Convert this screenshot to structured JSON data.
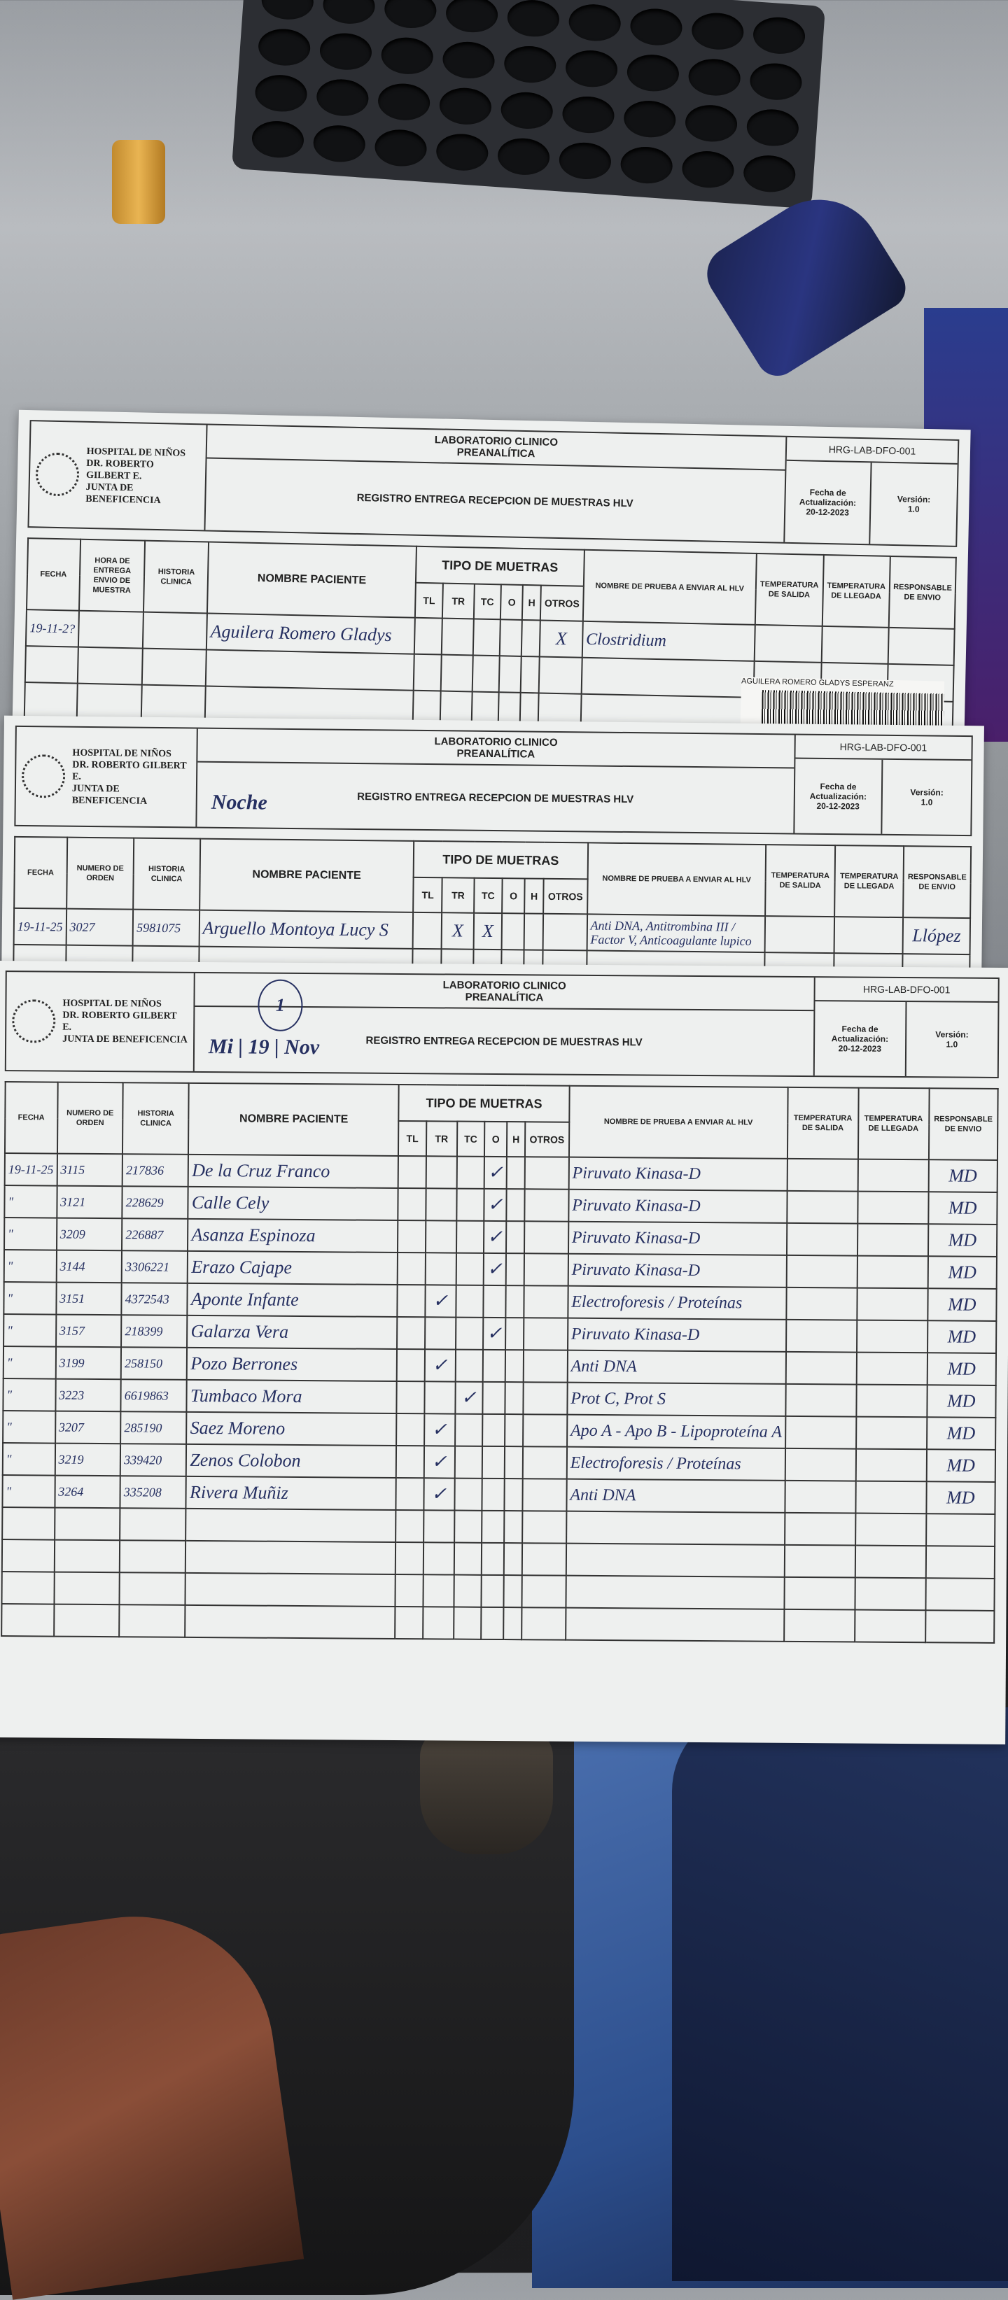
{
  "form_header": {
    "hospital_lines": [
      "HOSPITAL DE NIÑOS",
      "DR. ROBERTO GILBERT E.",
      "JUNTA DE BENEFICENCIA"
    ],
    "lab_title": "LABORATORIO CLINICO",
    "lab_subtitle": "PREANALÍTICA",
    "register_title": "REGISTRO ENTREGA RECEPCION DE MUESTRAS HLV",
    "code": "HRG-LAB-DFO-001",
    "update_label": "Fecha de Actualización:",
    "update_date": "20-12-2023",
    "version_label": "Versión:",
    "version": "1.0"
  },
  "columns_form1": [
    "FECHA",
    "HORA DE ENTREGA ENVIO DE MUESTRA",
    "HISTORIA CLINICA",
    "NOMBRE PACIENTE",
    "TIPO DE MUETRAS",
    "NOMBRE DE PRUEBA A ENVIAR AL HLV",
    "TEMPERATURA DE SALIDA",
    "TEMPERATURA DE LLEGADA",
    "RESPONSABLE DE ENVIO"
  ],
  "columns": [
    "FECHA",
    "NUMERO DE ORDEN",
    "HISTORIA CLINICA",
    "NOMBRE PACIENTE",
    "TIPO DE MUETRAS",
    "NOMBRE DE PRUEBA A ENVIAR AL HLV",
    "TEMPERATURA DE SALIDA",
    "TEMPERATURA DE LLEGADA",
    "RESPONSABLE DE ENVIO"
  ],
  "sample_types": [
    "TL",
    "TR",
    "TC",
    "O",
    "H",
    "OTROS"
  ],
  "forms": [
    {
      "note": "",
      "sticker": "AGUILERA ROMERO   GLADYS ESPERANZ",
      "rows": [
        {
          "fecha": "19-11-2?",
          "orden": "",
          "historia": "",
          "nombre": "Aguilera Romero Gladys",
          "mark": "OTROS",
          "symbol": "X",
          "prueba": "Clostridium",
          "responsable": ""
        }
      ],
      "empty_rows": 4
    },
    {
      "note": "Noche",
      "rows": [
        {
          "fecha": "19-11-25",
          "orden": "3027",
          "historia": "5981075",
          "nombre": "Arguello Montoya Lucy S",
          "mark": "TR,TC",
          "symbol": "X",
          "prueba": "Anti DNA, Antitrombina III / Factor V, Anticoagulante lupico",
          "responsable": "Llópez"
        }
      ],
      "empty_rows": 2
    },
    {
      "note": "Mi | 19 | Nov",
      "circled": "1",
      "rows": [
        {
          "fecha": "19-11-25",
          "orden": "3115",
          "historia": "217836",
          "nombre": "De la Cruz Franco",
          "mark": "O",
          "symbol": "✓",
          "prueba": "Piruvato Kinasa-D",
          "responsable": "MD"
        },
        {
          "fecha": "\"",
          "orden": "3121",
          "historia": "228629",
          "nombre": "Calle Cely",
          "mark": "O",
          "symbol": "✓",
          "prueba": "Piruvato Kinasa-D",
          "responsable": "MD"
        },
        {
          "fecha": "\"",
          "orden": "3209",
          "historia": "226887",
          "nombre": "Asanza Espinoza",
          "mark": "O",
          "symbol": "✓",
          "prueba": "Piruvato Kinasa-D",
          "responsable": "MD"
        },
        {
          "fecha": "\"",
          "orden": "3144",
          "historia": "3306221",
          "nombre": "Erazo Cajape",
          "mark": "O",
          "symbol": "✓",
          "prueba": "Piruvato Kinasa-D",
          "responsable": "MD"
        },
        {
          "fecha": "\"",
          "orden": "3151",
          "historia": "4372543",
          "nombre": "Aponte Infante",
          "mark": "TR",
          "symbol": "✓",
          "prueba": "Electroforesis / Proteínas",
          "responsable": "MD"
        },
        {
          "fecha": "\"",
          "orden": "3157",
          "historia": "218399",
          "nombre": "Galarza Vera",
          "mark": "O",
          "symbol": "✓",
          "prueba": "Piruvato Kinasa-D",
          "responsable": "MD"
        },
        {
          "fecha": "\"",
          "orden": "3199",
          "historia": "258150",
          "nombre": "Pozo Berrones",
          "mark": "TR",
          "symbol": "✓",
          "prueba": "Anti DNA",
          "responsable": "MD"
        },
        {
          "fecha": "\"",
          "orden": "3223",
          "historia": "6619863",
          "nombre": "Tumbaco Mora",
          "mark": "TC",
          "symbol": "✓",
          "prueba": "Prot C, Prot S",
          "responsable": "MD"
        },
        {
          "fecha": "\"",
          "orden": "3207",
          "historia": "285190",
          "nombre": "Saez Moreno",
          "mark": "TR",
          "symbol": "✓",
          "prueba": "Apo A - Apo B - Lipoproteína A",
          "responsable": "MD"
        },
        {
          "fecha": "\"",
          "orden": "3219",
          "historia": "339420",
          "nombre": "Zenos Colobon",
          "mark": "TR",
          "symbol": "✓",
          "prueba": "Electroforesis / Proteínas",
          "responsable": "MD"
        },
        {
          "fecha": "\"",
          "orden": "3264",
          "historia": "335208",
          "nombre": "Rivera Muñiz",
          "mark": "TR",
          "symbol": "✓",
          "prueba": "Anti DNA",
          "responsable": "MD"
        }
      ],
      "empty_rows": 4
    }
  ]
}
